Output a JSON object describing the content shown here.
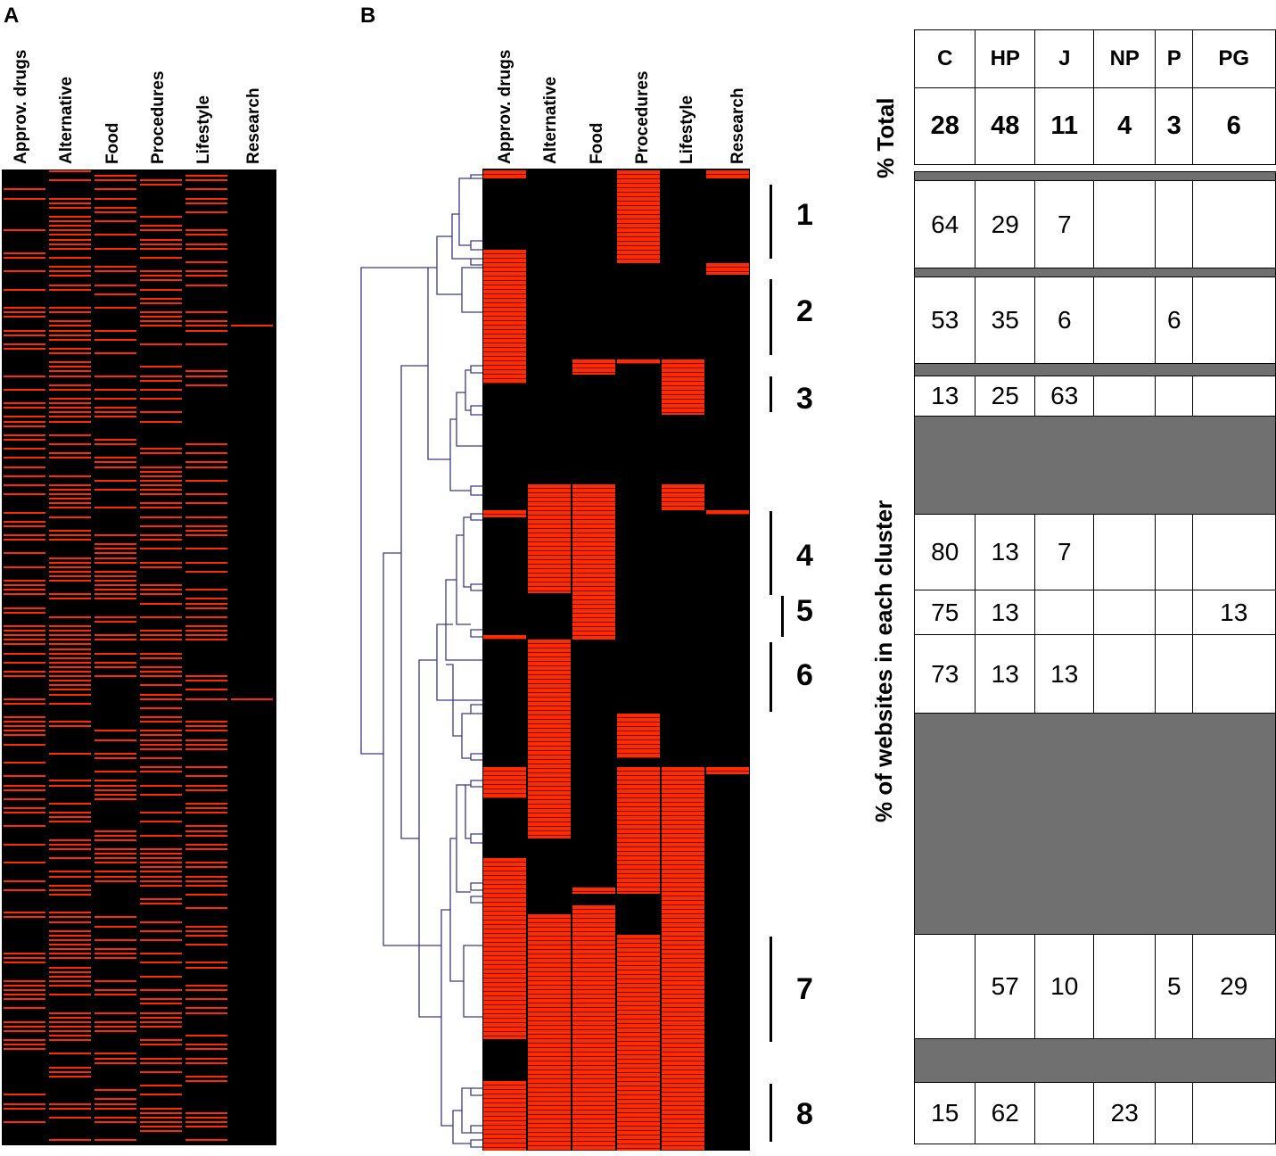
{
  "panels": {
    "a": "A",
    "b": "B"
  },
  "chart_data": [
    {
      "type": "heatmap",
      "panel": "A",
      "columns": [
        "Approv. drugs",
        "Alternative",
        "Food",
        "Procedures",
        "Lifestyle",
        "Research"
      ],
      "description_of_values": "binary presence (red) / absence (black) per website row, unsorted",
      "colors": {
        "present": "#ff2a00",
        "absent": "#000000"
      }
    },
    {
      "type": "heatmap",
      "panel": "B",
      "columns": [
        "Approv. drugs",
        "Alternative",
        "Food",
        "Procedures",
        "Lifestyle",
        "Research"
      ],
      "has_dendrogram": true,
      "clusters": [
        "1",
        "2",
        "3",
        "4",
        "5",
        "6",
        "7",
        "8"
      ],
      "colors": {
        "present": "#ff2a00",
        "absent": "#000000",
        "dendrogram": "#3a3a8c"
      }
    },
    {
      "type": "table",
      "panel": "B",
      "headers": [
        "C",
        "HP",
        "J",
        "NP",
        "P",
        "PG"
      ],
      "total_label": "% Total",
      "totals": [
        "28",
        "48",
        "11",
        "4",
        "3",
        "6"
      ],
      "cluster_axis_label": "% of websites in each cluster",
      "rows": [
        {
          "cluster": "1",
          "values": [
            "64",
            "29",
            "7",
            "",
            "",
            ""
          ]
        },
        {
          "cluster": "2",
          "values": [
            "53",
            "35",
            "6",
            "",
            "6",
            ""
          ]
        },
        {
          "cluster": "3",
          "values": [
            "13",
            "25",
            "63",
            "",
            "",
            ""
          ]
        },
        {
          "cluster": "4",
          "values": [
            "80",
            "13",
            "7",
            "",
            "",
            ""
          ]
        },
        {
          "cluster": "5",
          "values": [
            "75",
            "13",
            "",
            "",
            "",
            "13"
          ]
        },
        {
          "cluster": "6",
          "values": [
            "73",
            "13",
            "13",
            "",
            "",
            ""
          ]
        },
        {
          "cluster": "7",
          "values": [
            "",
            "57",
            "10",
            "",
            "5",
            "29"
          ]
        },
        {
          "cluster": "8",
          "values": [
            "15",
            "62",
            "",
            "23",
            "",
            ""
          ]
        }
      ],
      "colors": {
        "gap": "#707070"
      }
    }
  ]
}
